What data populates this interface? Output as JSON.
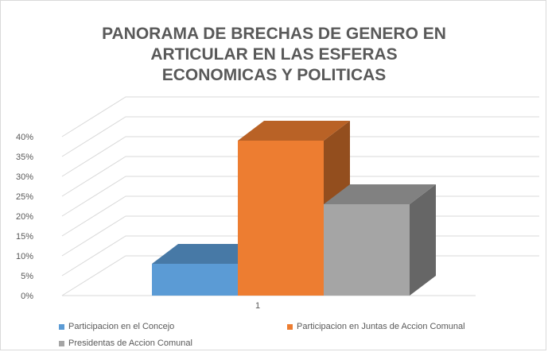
{
  "chart_data": {
    "type": "bar",
    "title_lines": [
      "PANORAMA DE BRECHAS DE GENERO EN",
      "ARTICULAR EN LAS ESFERAS",
      "ECONOMICAS Y POLITICAS"
    ],
    "categories": [
      "1"
    ],
    "ylim": [
      0,
      0.4
    ],
    "y_ticks": [
      "0%",
      "5%",
      "10%",
      "15%",
      "20%",
      "25%",
      "30%",
      "35%",
      "40%"
    ],
    "grid": true,
    "three_d": true,
    "legend_position": "bottom",
    "series": [
      {
        "name": "Participacion en el Concejo",
        "values": [
          0.08
        ],
        "color": "#5b9bd5"
      },
      {
        "name": "Participacion en Juntas de Accion Comunal",
        "values": [
          0.39
        ],
        "color": "#ed7d31"
      },
      {
        "name": "Presidentas de Accion Comunal",
        "values": [
          0.23
        ],
        "color": "#a5a5a5"
      }
    ]
  }
}
